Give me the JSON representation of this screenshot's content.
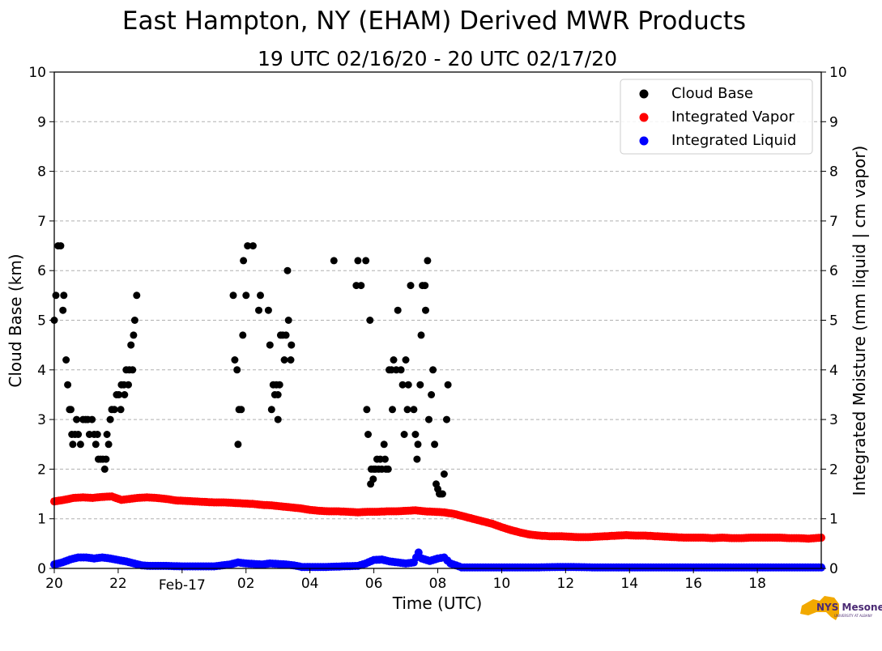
{
  "chart_data": {
    "type": "scatter",
    "title": "East Hampton, NY (EHAM) Derived MWR Products",
    "subtitle": "19 UTC 02/16/20 - 20 UTC 02/17/20",
    "xlabel": "Time (UTC)",
    "ylabel": "Cloud Base (km)",
    "ylabel_right": "Integrated Moisture (mm liquid | cm vapor)",
    "xlim": [
      20,
      44
    ],
    "ylim": [
      0,
      10
    ],
    "ylim_right": [
      0,
      10
    ],
    "x_units": "hours since 00 UTC 02/16/20",
    "x_ticks": [
      {
        "x": 20,
        "label": "20"
      },
      {
        "x": 22,
        "label": "22"
      },
      {
        "x": 24,
        "label": "Feb-17"
      },
      {
        "x": 26,
        "label": "02"
      },
      {
        "x": 28,
        "label": "04"
      },
      {
        "x": 30,
        "label": "06"
      },
      {
        "x": 32,
        "label": "08"
      },
      {
        "x": 34,
        "label": "10"
      },
      {
        "x": 36,
        "label": "12"
      },
      {
        "x": 38,
        "label": "14"
      },
      {
        "x": 40,
        "label": "16"
      },
      {
        "x": 42,
        "label": "18"
      }
    ],
    "y_ticks": [
      "0",
      "1",
      "2",
      "3",
      "4",
      "5",
      "6",
      "7",
      "8",
      "9",
      "10"
    ],
    "grid": "horizontal dashed",
    "legend_position": "top-right",
    "series": [
      {
        "name": "Cloud Base",
        "color": "#000000",
        "axis": "left",
        "points": [
          [
            20.0,
            5.0
          ],
          [
            20.05,
            5.5
          ],
          [
            20.12,
            6.5
          ],
          [
            20.2,
            6.5
          ],
          [
            20.27,
            5.2
          ],
          [
            20.3,
            5.5
          ],
          [
            20.37,
            4.2
          ],
          [
            20.42,
            3.7
          ],
          [
            20.48,
            3.2
          ],
          [
            20.52,
            3.2
          ],
          [
            20.55,
            2.7
          ],
          [
            20.58,
            2.5
          ],
          [
            20.65,
            2.7
          ],
          [
            20.7,
            3.0
          ],
          [
            20.75,
            2.7
          ],
          [
            20.82,
            2.5
          ],
          [
            20.9,
            3.0
          ],
          [
            20.98,
            3.0
          ],
          [
            21.05,
            3.0
          ],
          [
            21.1,
            2.7
          ],
          [
            21.18,
            3.0
          ],
          [
            21.25,
            2.7
          ],
          [
            21.3,
            2.5
          ],
          [
            21.35,
            2.7
          ],
          [
            21.38,
            2.2
          ],
          [
            21.45,
            2.2
          ],
          [
            21.52,
            2.2
          ],
          [
            21.58,
            2.0
          ],
          [
            21.62,
            2.2
          ],
          [
            21.65,
            2.7
          ],
          [
            21.7,
            2.5
          ],
          [
            21.75,
            3.0
          ],
          [
            21.8,
            3.2
          ],
          [
            21.88,
            3.2
          ],
          [
            21.95,
            3.5
          ],
          [
            22.02,
            3.5
          ],
          [
            22.08,
            3.2
          ],
          [
            22.1,
            3.7
          ],
          [
            22.18,
            3.7
          ],
          [
            22.2,
            3.5
          ],
          [
            22.25,
            4.0
          ],
          [
            22.32,
            3.7
          ],
          [
            22.35,
            4.0
          ],
          [
            22.4,
            4.5
          ],
          [
            22.45,
            4.0
          ],
          [
            22.48,
            4.7
          ],
          [
            22.52,
            5.0
          ],
          [
            22.58,
            5.5
          ],
          [
            25.6,
            5.5
          ],
          [
            25.65,
            4.2
          ],
          [
            25.72,
            4.0
          ],
          [
            25.75,
            2.5
          ],
          [
            25.78,
            3.2
          ],
          [
            25.85,
            3.2
          ],
          [
            25.9,
            4.7
          ],
          [
            25.92,
            6.2
          ],
          [
            26.05,
            6.5
          ],
          [
            26.0,
            5.5
          ],
          [
            26.22,
            6.5
          ],
          [
            26.4,
            5.2
          ],
          [
            26.45,
            5.5
          ],
          [
            26.7,
            5.2
          ],
          [
            26.75,
            4.5
          ],
          [
            26.8,
            3.2
          ],
          [
            26.85,
            3.7
          ],
          [
            26.9,
            3.5
          ],
          [
            26.95,
            3.7
          ],
          [
            27.0,
            3.5
          ],
          [
            27.0,
            3.0
          ],
          [
            27.05,
            3.7
          ],
          [
            27.08,
            4.7
          ],
          [
            27.15,
            4.7
          ],
          [
            27.2,
            4.2
          ],
          [
            27.25,
            4.7
          ],
          [
            27.3,
            6.0
          ],
          [
            27.33,
            5.0
          ],
          [
            27.4,
            4.2
          ],
          [
            27.42,
            4.5
          ],
          [
            28.75,
            6.2
          ],
          [
            29.45,
            5.7
          ],
          [
            29.5,
            6.2
          ],
          [
            29.6,
            5.7
          ],
          [
            29.75,
            6.2
          ],
          [
            29.78,
            3.2
          ],
          [
            29.82,
            2.7
          ],
          [
            29.88,
            5.0
          ],
          [
            29.9,
            1.7
          ],
          [
            29.92,
            2.0
          ],
          [
            29.98,
            1.8
          ],
          [
            30.0,
            2.0
          ],
          [
            30.05,
            2.0
          ],
          [
            30.1,
            2.2
          ],
          [
            30.15,
            2.0
          ],
          [
            30.2,
            2.2
          ],
          [
            30.25,
            2.0
          ],
          [
            30.32,
            2.5
          ],
          [
            30.35,
            2.2
          ],
          [
            30.38,
            2.0
          ],
          [
            30.45,
            2.0
          ],
          [
            30.48,
            4.0
          ],
          [
            30.55,
            4.0
          ],
          [
            30.58,
            3.2
          ],
          [
            30.62,
            4.2
          ],
          [
            30.7,
            4.0
          ],
          [
            30.75,
            5.2
          ],
          [
            30.85,
            4.0
          ],
          [
            30.9,
            3.7
          ],
          [
            30.95,
            2.7
          ],
          [
            31.0,
            4.2
          ],
          [
            31.05,
            3.2
          ],
          [
            31.08,
            3.7
          ],
          [
            31.15,
            5.7
          ],
          [
            31.25,
            3.2
          ],
          [
            31.3,
            2.7
          ],
          [
            31.35,
            2.2
          ],
          [
            31.38,
            2.5
          ],
          [
            31.45,
            3.7
          ],
          [
            31.48,
            4.7
          ],
          [
            31.52,
            5.7
          ],
          [
            31.6,
            5.7
          ],
          [
            31.62,
            5.2
          ],
          [
            31.68,
            6.2
          ],
          [
            31.72,
            3.0
          ],
          [
            31.8,
            3.5
          ],
          [
            31.85,
            4.0
          ],
          [
            31.9,
            2.5
          ],
          [
            31.95,
            1.7
          ],
          [
            32.0,
            1.6
          ],
          [
            32.05,
            1.5
          ],
          [
            32.1,
            1.5
          ],
          [
            32.15,
            1.5
          ],
          [
            32.2,
            1.9
          ],
          [
            32.28,
            3.0
          ],
          [
            32.32,
            3.7
          ]
        ]
      },
      {
        "name": "Integrated Vapor",
        "color": "#ff0000",
        "axis": "right",
        "points": [
          [
            20.0,
            1.35
          ],
          [
            20.3,
            1.38
          ],
          [
            20.6,
            1.42
          ],
          [
            20.9,
            1.43
          ],
          [
            21.2,
            1.42
          ],
          [
            21.5,
            1.44
          ],
          [
            21.8,
            1.45
          ],
          [
            22.1,
            1.38
          ],
          [
            22.35,
            1.4
          ],
          [
            22.6,
            1.42
          ],
          [
            22.9,
            1.43
          ],
          [
            23.2,
            1.42
          ],
          [
            23.5,
            1.4
          ],
          [
            23.8,
            1.37
          ],
          [
            24.1,
            1.36
          ],
          [
            24.4,
            1.35
          ],
          [
            24.7,
            1.34
          ],
          [
            25.0,
            1.33
          ],
          [
            25.3,
            1.33
          ],
          [
            25.6,
            1.32
          ],
          [
            25.9,
            1.31
          ],
          [
            26.2,
            1.3
          ],
          [
            26.5,
            1.28
          ],
          [
            26.8,
            1.27
          ],
          [
            27.1,
            1.25
          ],
          [
            27.4,
            1.23
          ],
          [
            27.7,
            1.21
          ],
          [
            28.0,
            1.18
          ],
          [
            28.3,
            1.16
          ],
          [
            28.6,
            1.15
          ],
          [
            28.9,
            1.15
          ],
          [
            29.2,
            1.14
          ],
          [
            29.5,
            1.13
          ],
          [
            29.8,
            1.14
          ],
          [
            30.1,
            1.14
          ],
          [
            30.4,
            1.15
          ],
          [
            30.7,
            1.15
          ],
          [
            31.0,
            1.16
          ],
          [
            31.3,
            1.17
          ],
          [
            31.6,
            1.15
          ],
          [
            31.9,
            1.14
          ],
          [
            32.2,
            1.13
          ],
          [
            32.5,
            1.1
          ],
          [
            32.8,
            1.05
          ],
          [
            33.1,
            1.0
          ],
          [
            33.4,
            0.95
          ],
          [
            33.7,
            0.9
          ],
          [
            34.0,
            0.83
          ],
          [
            34.3,
            0.77
          ],
          [
            34.6,
            0.72
          ],
          [
            34.9,
            0.68
          ],
          [
            35.2,
            0.66
          ],
          [
            35.5,
            0.65
          ],
          [
            35.8,
            0.65
          ],
          [
            36.1,
            0.64
          ],
          [
            36.4,
            0.63
          ],
          [
            36.7,
            0.63
          ],
          [
            37.0,
            0.64
          ],
          [
            37.3,
            0.65
          ],
          [
            37.6,
            0.66
          ],
          [
            37.9,
            0.67
          ],
          [
            38.2,
            0.66
          ],
          [
            38.5,
            0.66
          ],
          [
            38.8,
            0.65
          ],
          [
            39.1,
            0.64
          ],
          [
            39.4,
            0.63
          ],
          [
            39.7,
            0.62
          ],
          [
            40.0,
            0.62
          ],
          [
            40.3,
            0.62
          ],
          [
            40.6,
            0.61
          ],
          [
            40.9,
            0.62
          ],
          [
            41.2,
            0.61
          ],
          [
            41.5,
            0.61
          ],
          [
            41.8,
            0.62
          ],
          [
            42.1,
            0.62
          ],
          [
            42.4,
            0.62
          ],
          [
            42.7,
            0.62
          ],
          [
            43.0,
            0.61
          ],
          [
            43.3,
            0.61
          ],
          [
            43.6,
            0.6
          ],
          [
            44.0,
            0.62
          ]
        ]
      },
      {
        "name": "Integrated Liquid",
        "color": "#0000ff",
        "axis": "right",
        "points": [
          [
            20.0,
            0.08
          ],
          [
            20.25,
            0.12
          ],
          [
            20.5,
            0.18
          ],
          [
            20.75,
            0.22
          ],
          [
            21.0,
            0.22
          ],
          [
            21.25,
            0.2
          ],
          [
            21.5,
            0.22
          ],
          [
            21.75,
            0.2
          ],
          [
            22.0,
            0.17
          ],
          [
            22.25,
            0.14
          ],
          [
            22.5,
            0.1
          ],
          [
            22.75,
            0.06
          ],
          [
            23.0,
            0.05
          ],
          [
            23.5,
            0.05
          ],
          [
            24.0,
            0.04
          ],
          [
            24.5,
            0.04
          ],
          [
            25.0,
            0.04
          ],
          [
            25.5,
            0.08
          ],
          [
            25.75,
            0.12
          ],
          [
            26.0,
            0.1
          ],
          [
            26.25,
            0.09
          ],
          [
            26.5,
            0.08
          ],
          [
            26.75,
            0.1
          ],
          [
            27.0,
            0.09
          ],
          [
            27.25,
            0.08
          ],
          [
            27.5,
            0.06
          ],
          [
            27.75,
            0.03
          ],
          [
            28.0,
            0.03
          ],
          [
            28.5,
            0.03
          ],
          [
            29.0,
            0.04
          ],
          [
            29.5,
            0.05
          ],
          [
            29.75,
            0.1
          ],
          [
            30.0,
            0.17
          ],
          [
            30.25,
            0.18
          ],
          [
            30.5,
            0.14
          ],
          [
            30.75,
            0.12
          ],
          [
            31.0,
            0.1
          ],
          [
            31.25,
            0.12
          ],
          [
            31.4,
            0.32
          ],
          [
            31.5,
            0.2
          ],
          [
            31.75,
            0.15
          ],
          [
            32.0,
            0.2
          ],
          [
            32.2,
            0.22
          ],
          [
            32.4,
            0.1
          ],
          [
            32.75,
            0.02
          ],
          [
            33.0,
            0.02
          ],
          [
            34.0,
            0.02
          ],
          [
            35.0,
            0.02
          ],
          [
            36.0,
            0.03
          ],
          [
            37.0,
            0.02
          ],
          [
            38.0,
            0.02
          ],
          [
            39.0,
            0.02
          ],
          [
            40.0,
            0.02
          ],
          [
            41.0,
            0.02
          ],
          [
            42.0,
            0.02
          ],
          [
            43.0,
            0.02
          ],
          [
            44.0,
            0.02
          ]
        ]
      }
    ]
  },
  "logo": {
    "text": "NYS Mesonet",
    "subtext": "UNIVERSITY AT ALBANY"
  }
}
